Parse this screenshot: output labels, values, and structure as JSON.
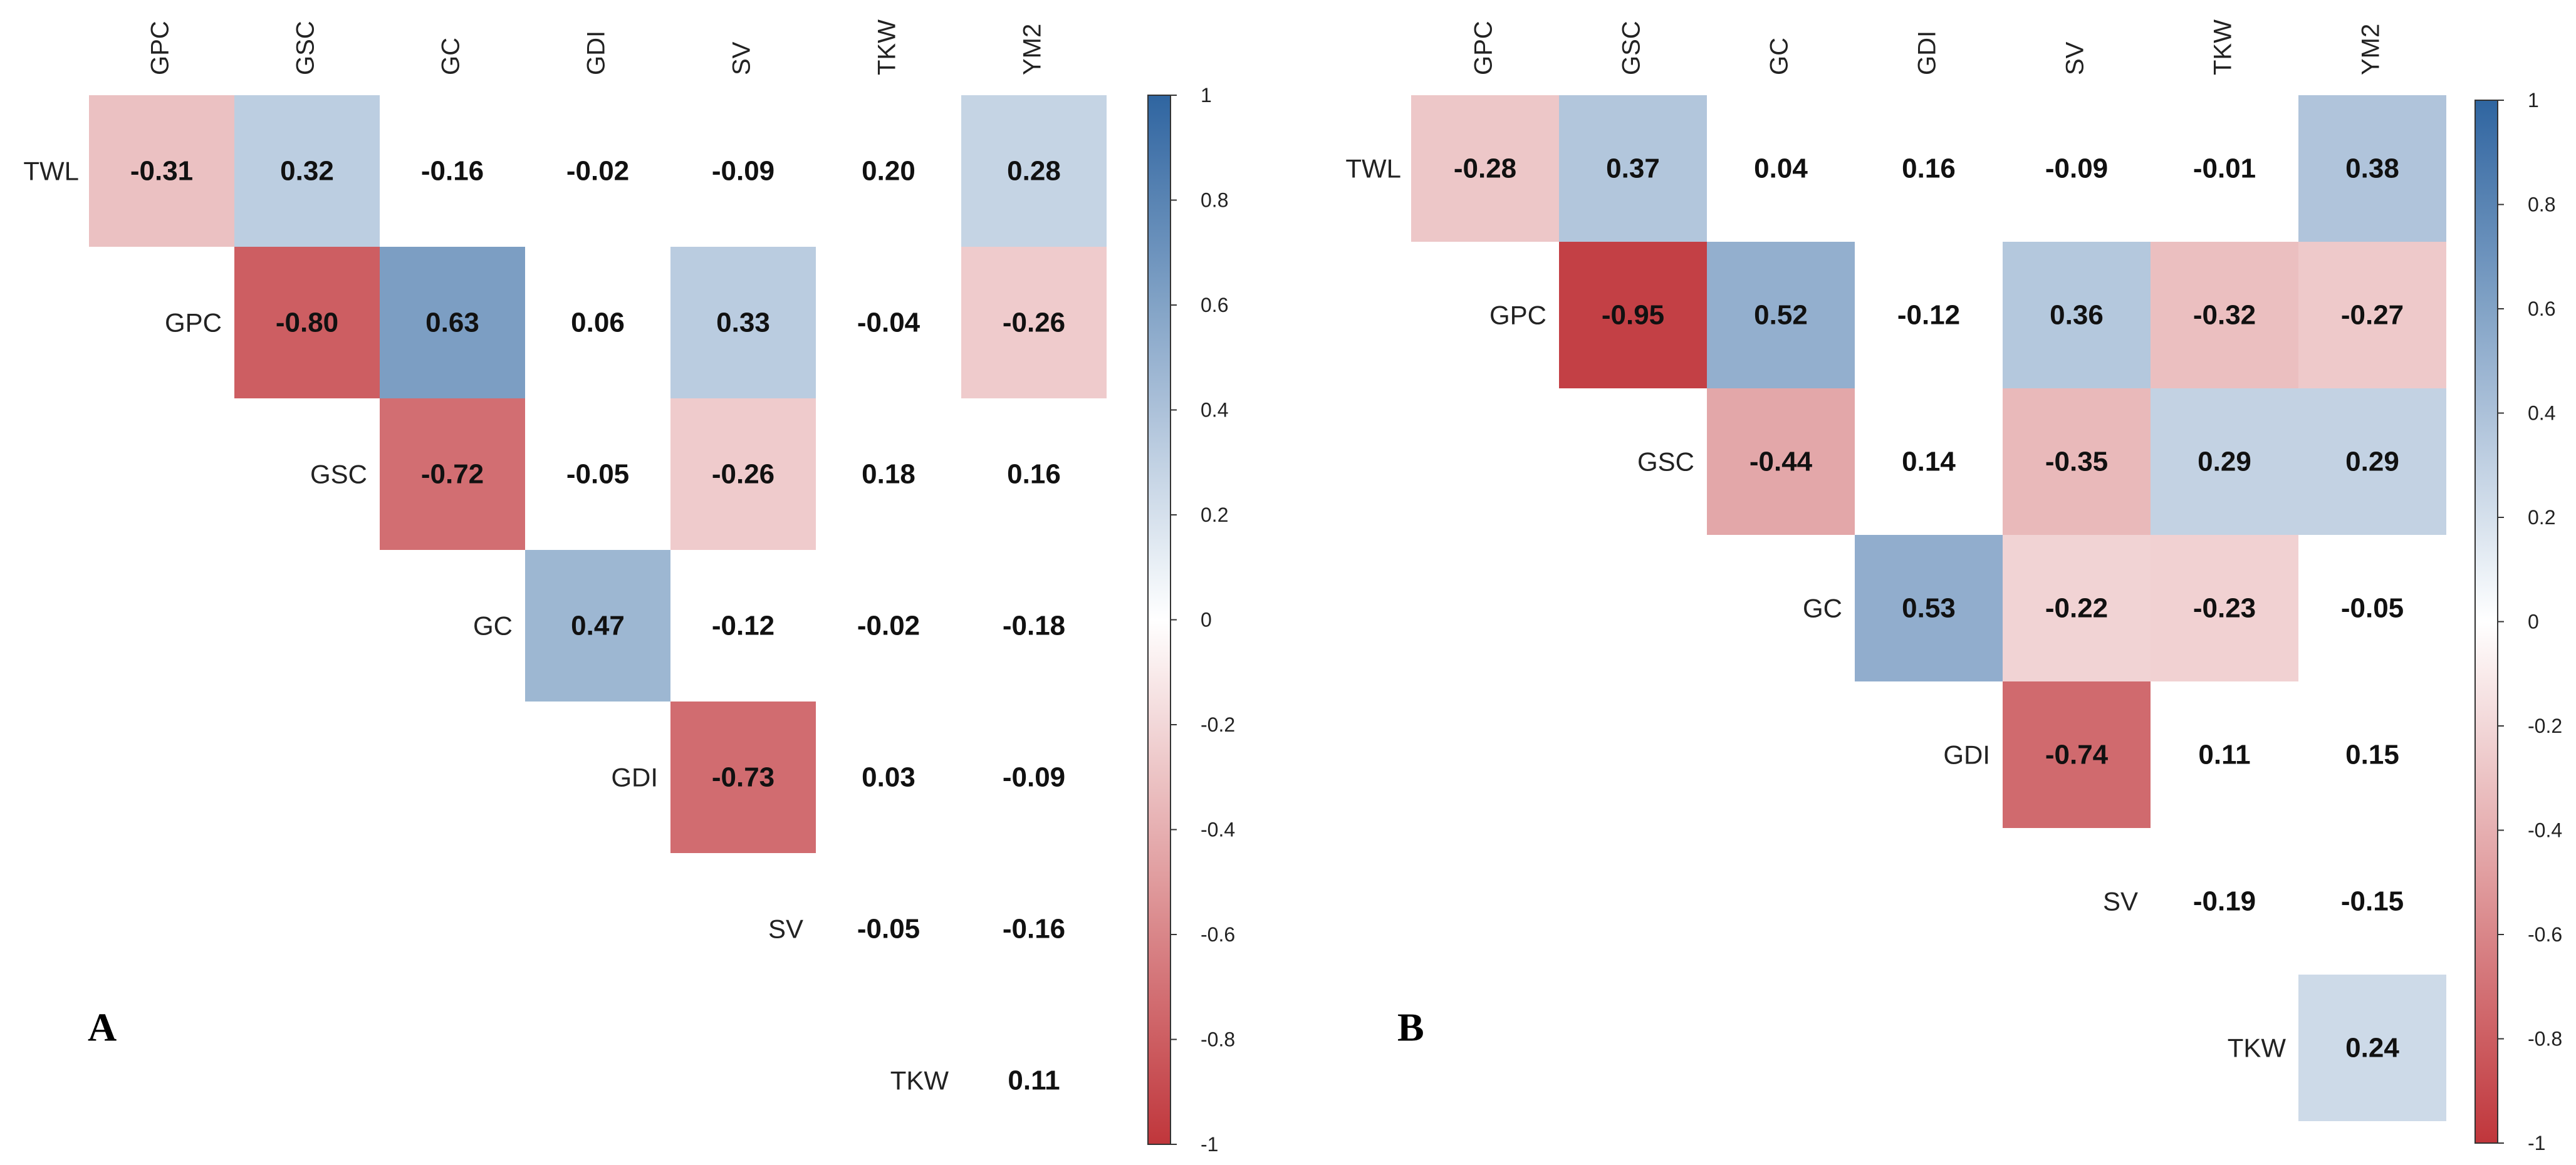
{
  "chart_data": [
    {
      "type": "heatmap",
      "panel_label": "A",
      "columns": [
        "GPC",
        "GSC",
        "GC",
        "GDI",
        "SV",
        "TKW",
        "YM2"
      ],
      "rows": [
        "TWL",
        "GPC",
        "GSC",
        "GC",
        "GDI",
        "SV",
        "TKW"
      ],
      "values": [
        [
          -0.31,
          0.32,
          -0.16,
          -0.02,
          -0.09,
          0.2,
          0.28
        ],
        [
          null,
          -0.8,
          0.63,
          0.06,
          0.33,
          -0.04,
          -0.26
        ],
        [
          null,
          null,
          -0.72,
          -0.05,
          -0.26,
          0.18,
          0.16
        ],
        [
          null,
          null,
          null,
          0.47,
          -0.12,
          -0.02,
          -0.18
        ],
        [
          null,
          null,
          null,
          null,
          -0.73,
          0.03,
          -0.09
        ],
        [
          null,
          null,
          null,
          null,
          null,
          -0.05,
          -0.16
        ],
        [
          null,
          null,
          null,
          null,
          null,
          null,
          0.11
        ]
      ],
      "colored": [
        [
          true,
          true,
          false,
          false,
          false,
          false,
          true
        ],
        [
          false,
          true,
          true,
          false,
          true,
          false,
          true
        ],
        [
          false,
          false,
          true,
          false,
          true,
          false,
          false
        ],
        [
          false,
          false,
          false,
          true,
          false,
          false,
          false
        ],
        [
          false,
          false,
          false,
          false,
          true,
          false,
          false
        ],
        [
          false,
          false,
          false,
          false,
          false,
          false,
          false
        ],
        [
          false,
          false,
          false,
          false,
          false,
          false,
          false
        ]
      ],
      "colorbar": {
        "min": -1,
        "max": 1,
        "ticks": [
          "1",
          "0.8",
          "0.6",
          "0.4",
          "0.2",
          "0",
          "-0.2",
          "-0.4",
          "-0.6",
          "-0.8",
          "-1"
        ]
      }
    },
    {
      "type": "heatmap",
      "panel_label": "B",
      "columns": [
        "GPC",
        "GSC",
        "GC",
        "GDI",
        "SV",
        "TKW",
        "YM2"
      ],
      "rows": [
        "TWL",
        "GPC",
        "GSC",
        "GC",
        "GDI",
        "SV",
        "TKW"
      ],
      "values": [
        [
          -0.28,
          0.37,
          0.04,
          0.16,
          -0.09,
          -0.01,
          0.38
        ],
        [
          null,
          -0.95,
          0.52,
          -0.12,
          0.36,
          -0.32,
          -0.27
        ],
        [
          null,
          null,
          -0.44,
          0.14,
          -0.35,
          0.29,
          0.29
        ],
        [
          null,
          null,
          null,
          0.53,
          -0.22,
          -0.23,
          -0.05
        ],
        [
          null,
          null,
          null,
          null,
          -0.74,
          0.11,
          0.15
        ],
        [
          null,
          null,
          null,
          null,
          null,
          -0.19,
          -0.15
        ],
        [
          null,
          null,
          null,
          null,
          null,
          null,
          0.24
        ]
      ],
      "colored": [
        [
          true,
          true,
          false,
          false,
          false,
          false,
          true
        ],
        [
          false,
          true,
          true,
          false,
          true,
          true,
          true
        ],
        [
          false,
          false,
          true,
          false,
          true,
          true,
          true
        ],
        [
          false,
          false,
          false,
          true,
          true,
          true,
          false
        ],
        [
          false,
          false,
          false,
          false,
          true,
          false,
          false
        ],
        [
          false,
          false,
          false,
          false,
          false,
          false,
          false
        ],
        [
          false,
          false,
          false,
          false,
          false,
          false,
          true
        ]
      ],
      "colorbar": {
        "min": -1,
        "max": 1,
        "ticks": [
          "1",
          "0.8",
          "0.6",
          "0.4",
          "0.2",
          "0",
          "-0.2",
          "-0.4",
          "-0.6",
          "-0.8",
          "-1"
        ]
      }
    }
  ],
  "colors": {
    "negative": "#c0363b",
    "neutral": "#ffffff",
    "positive": "#2f65a0"
  }
}
